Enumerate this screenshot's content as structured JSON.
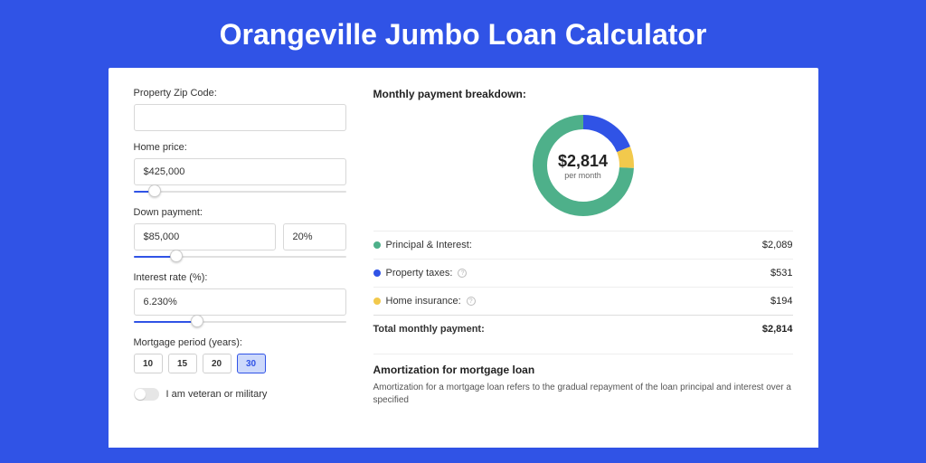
{
  "page_title": "Orangeville Jumbo Loan Calculator",
  "colors": {
    "page_bg": "#3053e6",
    "card_bg": "#ffffff",
    "accent": "#3053e6",
    "text_dark": "#222222",
    "text_mid": "#333333",
    "text_light": "#666666",
    "border": "#d8d8d8",
    "divider": "#eeeeee"
  },
  "form": {
    "zip": {
      "label": "Property Zip Code:",
      "value": ""
    },
    "home_price": {
      "label": "Home price:",
      "value": "$425,000",
      "slider_pct": 10
    },
    "down_payment": {
      "label": "Down payment:",
      "value": "$85,000",
      "pct_value": "20%",
      "slider_pct": 20
    },
    "interest_rate": {
      "label": "Interest rate (%):",
      "value": "6.230%",
      "slider_pct": 30
    },
    "mortgage_period": {
      "label": "Mortgage period (years):",
      "options": [
        "10",
        "15",
        "20",
        "30"
      ],
      "selected": "30"
    },
    "veteran": {
      "label": "I am veteran or military",
      "checked": false
    }
  },
  "breakdown": {
    "title": "Monthly payment breakdown:",
    "donut": {
      "amount": "$2,814",
      "sub": "per month",
      "segments": [
        {
          "label": "Principal & Interest",
          "value": 2089,
          "display": "$2,089",
          "color": "#4eb08a",
          "pct": 74.2
        },
        {
          "label": "Property taxes",
          "value": 531,
          "display": "$531",
          "color": "#3053e6",
          "pct": 18.9,
          "info": true
        },
        {
          "label": "Home insurance",
          "value": 194,
          "display": "$194",
          "color": "#f2c94c",
          "pct": 6.9,
          "info": true
        }
      ],
      "stroke_width": 16
    },
    "rows": [
      {
        "label": "Principal & Interest:",
        "value": "$2,089",
        "color": "#4eb08a"
      },
      {
        "label": "Property taxes:",
        "value": "$531",
        "color": "#3053e6",
        "info": true
      },
      {
        "label": "Home insurance:",
        "value": "$194",
        "color": "#f2c94c",
        "info": true
      }
    ],
    "total": {
      "label": "Total monthly payment:",
      "value": "$2,814"
    }
  },
  "amort": {
    "title": "Amortization for mortgage loan",
    "text": "Amortization for a mortgage loan refers to the gradual repayment of the loan principal and interest over a specified"
  }
}
